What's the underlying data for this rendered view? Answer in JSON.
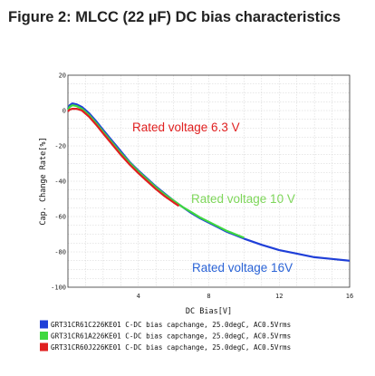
{
  "title": "Figure 2: MLCC (22 µF) DC bias characteristics",
  "chart_data": {
    "type": "line",
    "xlabel": "DC Bias[V]",
    "ylabel": "Cap. Change Rate[%]",
    "xlim": [
      0,
      16
    ],
    "ylim": [
      -100,
      20
    ],
    "x_ticks": [
      4,
      8,
      12,
      16
    ],
    "y_ticks": [
      20,
      0,
      -20,
      -40,
      -60,
      -80,
      -100
    ],
    "grid": true,
    "legend_position": "bottom",
    "series": [
      {
        "name": "GRT31CR61C226KE01 C-DC bias capchange, 25.0degC, AC0.5Vrms",
        "color": "#1f3fd8",
        "x": [
          0,
          0.1,
          0.25,
          0.5,
          0.8,
          1.2,
          1.6,
          2.0,
          2.5,
          3.0,
          3.5,
          4.0,
          4.5,
          5.0,
          5.5,
          6.0,
          6.5,
          7.0,
          7.5,
          8.0,
          8.5,
          9.0,
          10.0,
          11.0,
          12.0,
          13.0,
          14.0,
          15.0,
          16.0
        ],
        "y": [
          1,
          3,
          4,
          3.5,
          2,
          -1.5,
          -6,
          -11,
          -17,
          -23,
          -29,
          -34,
          -38.5,
          -43,
          -47,
          -51,
          -54.5,
          -58,
          -61,
          -63.5,
          -66,
          -68.5,
          -72.5,
          -76,
          -79,
          -81,
          -83,
          -84,
          -85
        ]
      },
      {
        "name": "GRT31CR61A226KE01 C-DC bias capchange, 25.0degC, AC0.5Vrms",
        "color": "#3fd83f",
        "x": [
          0,
          0.1,
          0.25,
          0.5,
          0.8,
          1.2,
          1.6,
          2.0,
          2.5,
          3.0,
          3.5,
          4.0,
          4.5,
          5.0,
          5.5,
          6.0,
          6.5,
          7.0,
          7.5,
          8.0,
          8.5,
          9.0,
          9.5,
          10.0
        ],
        "y": [
          0.5,
          2,
          3,
          2.5,
          1,
          -2.5,
          -7,
          -12,
          -18,
          -24,
          -29.5,
          -34.5,
          -39,
          -43.5,
          -47.5,
          -51,
          -54.5,
          -57.5,
          -60.5,
          -63,
          -65.5,
          -68,
          -70,
          -72
        ]
      },
      {
        "name": "GRT31CR60J226KE01 C-DC bias capchange, 25.0degC, AC0.5Vrms",
        "color": "#e02020",
        "x": [
          0,
          0.1,
          0.25,
          0.5,
          0.8,
          1.2,
          1.6,
          2.0,
          2.5,
          3.0,
          3.5,
          4.0,
          4.5,
          5.0,
          5.5,
          6.0,
          6.3
        ],
        "y": [
          -0.5,
          0.5,
          1,
          1,
          0,
          -3.5,
          -8,
          -13,
          -19,
          -25,
          -30.5,
          -35.5,
          -40,
          -44.5,
          -48.5,
          -52,
          -54
        ]
      }
    ],
    "annotations": [
      {
        "text": "Rated voltage 6.3 V",
        "color": "#e02020"
      },
      {
        "text": "Rated voltage 10 V",
        "color": "#7ed65a"
      },
      {
        "text": "Rated voltage 16V",
        "color": "#2a63d6"
      }
    ]
  }
}
